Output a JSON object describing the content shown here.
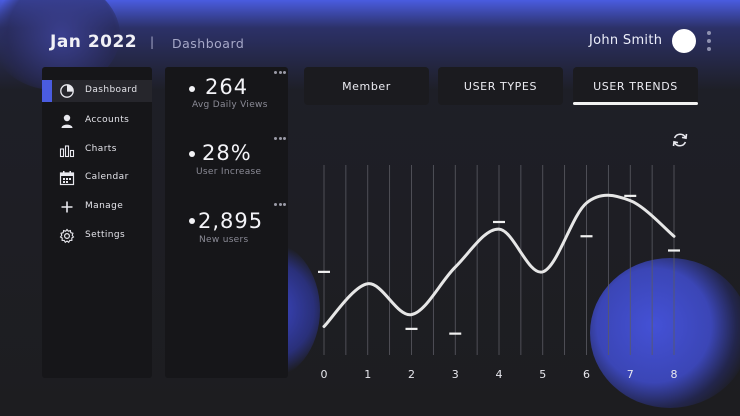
{
  "header": {
    "date": "Jan 2022",
    "separator": "|",
    "breadcrumb": "Dashboard",
    "user_name": "John Smith"
  },
  "sidebar": {
    "items": [
      {
        "label": "Dashboard",
        "icon": "pie-chart-icon",
        "active": true
      },
      {
        "label": "Accounts",
        "icon": "user-icon",
        "active": false
      },
      {
        "label": "Charts",
        "icon": "bar-chart-icon",
        "active": false
      },
      {
        "label": "Calendar",
        "icon": "calendar-icon",
        "active": false
      },
      {
        "label": "Manage",
        "icon": "plus-icon",
        "active": false
      },
      {
        "label": "Settings",
        "icon": "gear-icon",
        "active": false
      }
    ]
  },
  "stats": [
    {
      "value": "264",
      "label": "Avg Daily Views"
    },
    {
      "value": "28%",
      "label": "User Increase"
    },
    {
      "value": "2,895",
      "label": "New users"
    }
  ],
  "tabs": [
    {
      "label": "Member",
      "active": false
    },
    {
      "label": "USER TYPES",
      "active": false
    },
    {
      "label": "USER TRENDS",
      "active": true
    }
  ],
  "colors": {
    "accent": "#4a5ce0",
    "panel": "#161619",
    "background": "#1d1d20",
    "line": "#e6e6e6"
  },
  "chart_data": {
    "type": "line",
    "title": "",
    "xlabel": "",
    "ylabel": "",
    "x": [
      0,
      1,
      2,
      3,
      4,
      5,
      6,
      7,
      8
    ],
    "x_ticks": [
      "0",
      "1",
      "2",
      "3",
      "4",
      "5",
      "6",
      "7",
      "8"
    ],
    "series": [
      {
        "values": [
          1.2,
          3.0,
          1.7,
          3.7,
          5.3,
          3.5,
          6.4,
          6.5,
          5.0
        ]
      }
    ],
    "markers": [
      {
        "x": 0,
        "y": 3.5
      },
      {
        "x": 2,
        "y": 1.1
      },
      {
        "x": 3,
        "y": 0.9
      },
      {
        "x": 4,
        "y": 5.6
      },
      {
        "x": 6,
        "y": 5.0
      },
      {
        "x": 7,
        "y": 6.7
      },
      {
        "x": 8,
        "y": 4.4
      }
    ],
    "ylim": [
      0,
      8
    ],
    "xlim": [
      0,
      8
    ],
    "grid": "vertical",
    "legend": "none"
  }
}
